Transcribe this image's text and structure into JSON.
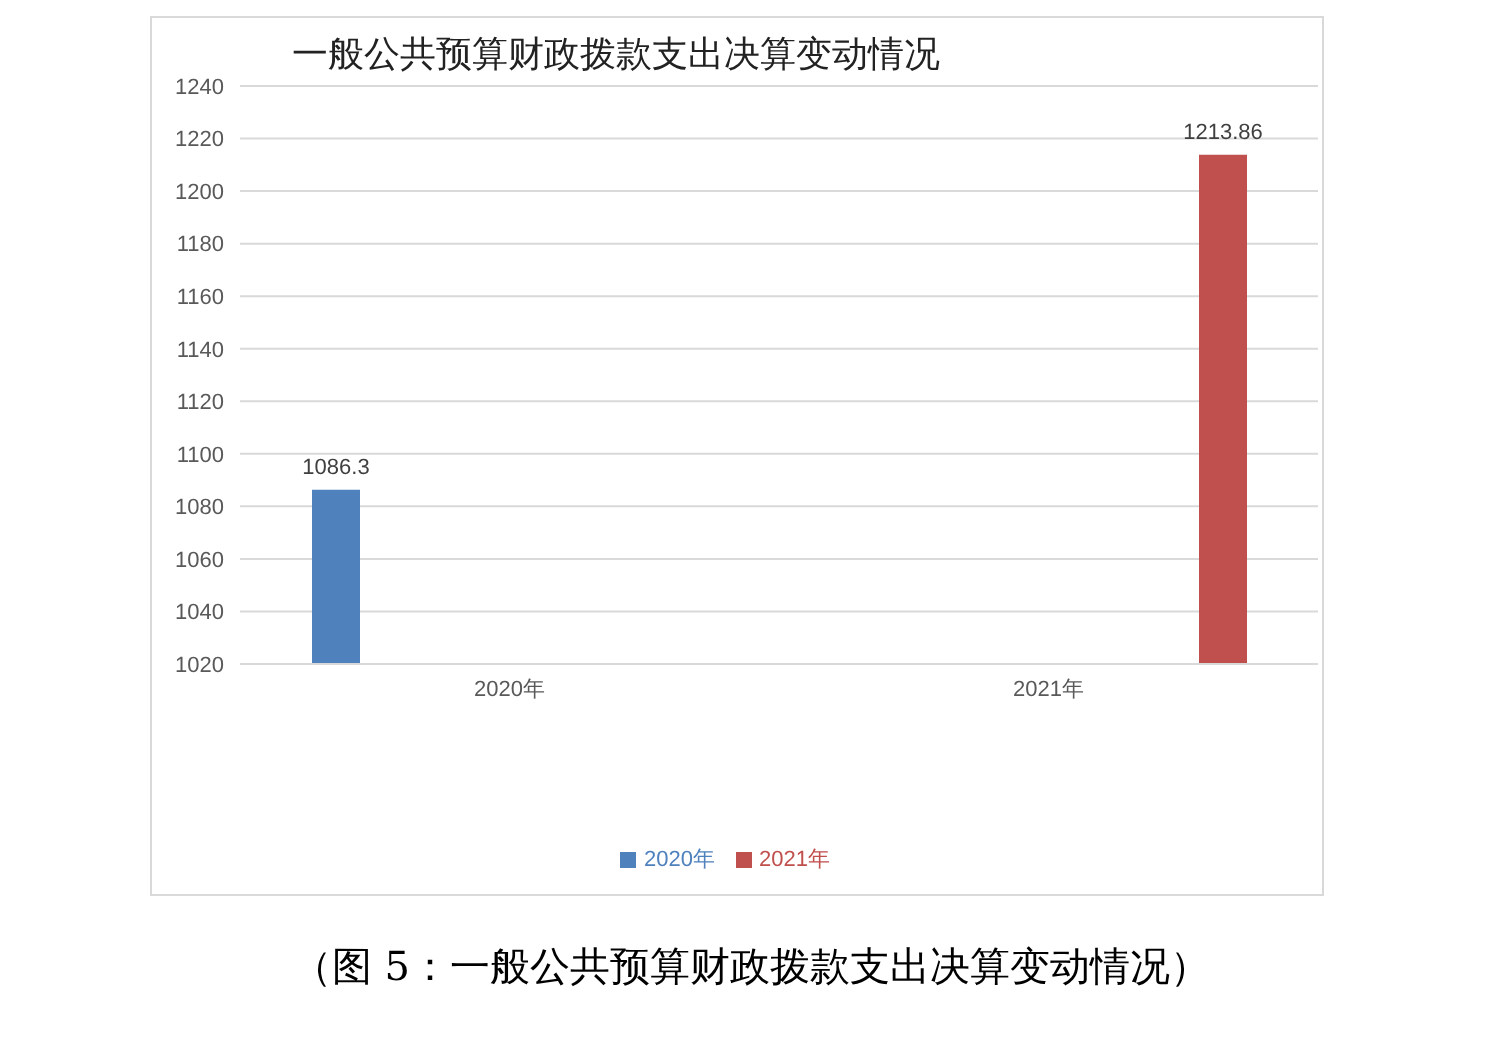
{
  "chart_data": {
    "type": "bar",
    "title": "一般公共预算财政拨款支出决算变动情况",
    "categories": [
      "2020年",
      "2021年"
    ],
    "series": [
      {
        "name": "2020年",
        "color": "#4f81bd",
        "values": [
          1086.3,
          null
        ]
      },
      {
        "name": "2021年",
        "color": "#c0504d",
        "values": [
          null,
          1213.86
        ]
      }
    ],
    "ylim": [
      1020,
      1240
    ],
    "yticks": [
      1020,
      1040,
      1060,
      1080,
      1100,
      1120,
      1140,
      1160,
      1180,
      1200,
      1220,
      1240
    ],
    "grid": "y",
    "legend": "bottom",
    "data_labels": true,
    "annotations": [
      "（图 5：一般公共预算财政拨款支出决算变动情况）"
    ]
  }
}
